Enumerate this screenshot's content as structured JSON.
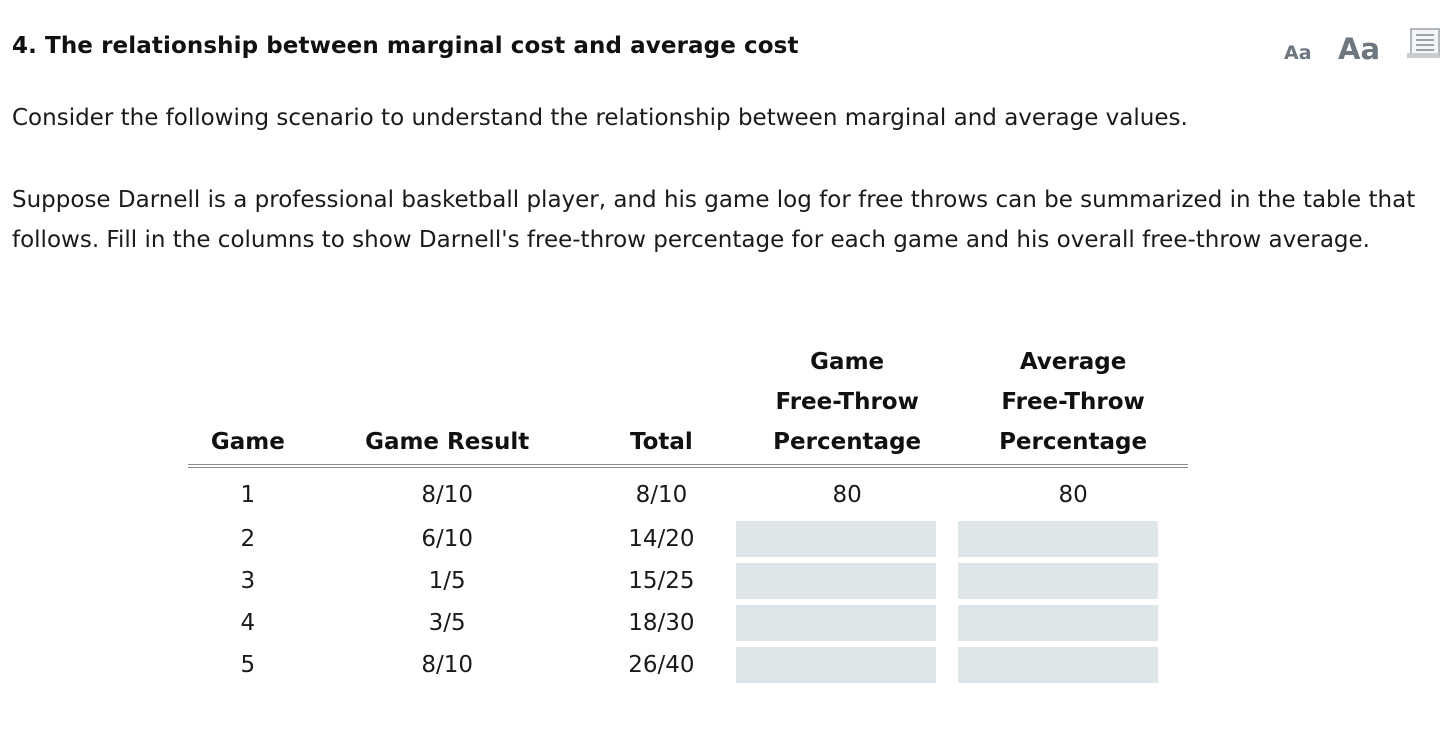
{
  "question": {
    "title": "4.  The relationship between marginal cost and average cost"
  },
  "font_controls": {
    "small_label": "Aa",
    "large_label": "Aa",
    "page_icon": "document-icon"
  },
  "paragraphs": {
    "intro": "Consider the following scenario to understand the relationship between marginal and average values.",
    "scenario": "Suppose Darnell is a professional basketball player, and his game log for free throws can be summarized in the table that follows. Fill in the columns to show Darnell's free-throw percentage for each game and his overall free-throw average."
  },
  "table": {
    "headers": {
      "game": "Game",
      "game_result": "Game Result",
      "total": "Total",
      "game_pct_line1": "Game",
      "game_pct_line2": "Free-Throw",
      "game_pct_line3": "Percentage",
      "avg_pct_line1": "Average",
      "avg_pct_line2": "Free-Throw",
      "avg_pct_line3": "Percentage"
    },
    "rows": [
      {
        "game": "1",
        "result": "8/10",
        "total": "8/10",
        "game_pct": "80",
        "avg_pct": "80"
      },
      {
        "game": "2",
        "result": "6/10",
        "total": "14/20",
        "game_pct": "",
        "avg_pct": ""
      },
      {
        "game": "3",
        "result": "1/5",
        "total": "15/25",
        "game_pct": "",
        "avg_pct": ""
      },
      {
        "game": "4",
        "result": "3/5",
        "total": "18/30",
        "game_pct": "",
        "avg_pct": ""
      },
      {
        "game": "5",
        "result": "8/10",
        "total": "26/40",
        "game_pct": "",
        "avg_pct": ""
      }
    ]
  },
  "colors": {
    "input_background": "#dfe6ea",
    "icon_gray": "#6e7680",
    "header_rule": "#8e8e8e"
  }
}
